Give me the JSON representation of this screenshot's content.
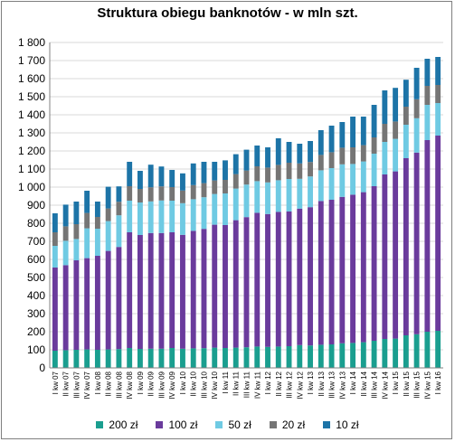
{
  "chart_data": {
    "type": "bar",
    "stacked": true,
    "title": "Struktura obiegu banknotów - w mln szt.",
    "xlabel": "",
    "ylabel": "",
    "ylim": [
      0,
      1800
    ],
    "yticks": [
      0,
      100,
      200,
      300,
      400,
      500,
      600,
      700,
      800,
      900,
      1000,
      1100,
      1200,
      1300,
      1400,
      1500,
      1600,
      1700,
      1800
    ],
    "ytick_labels": [
      "0",
      "100",
      "200",
      "300",
      "400",
      "500",
      "600",
      "700",
      "800",
      "900",
      "1 000",
      "1 100",
      "1 200",
      "1 300",
      "1 400",
      "1 500",
      "1 600",
      "1 700",
      "1 800"
    ],
    "grid": true,
    "legend_position": "bottom",
    "categories": [
      "I kw 07",
      "II kw 07",
      "III kw 07",
      "IV kw 07",
      "I kw 08",
      "II kw 08",
      "III kw 08",
      "IV kw 08",
      "I kw 09",
      "II kw 09",
      "III kw 09",
      "IV kw 09",
      "I kw 10",
      "II kw 10",
      "III kw 10",
      "IV kw 10",
      "I kw 11",
      "II kw 11",
      "III kw 11",
      "IV kw 11",
      "I kw 12",
      "II kw 12",
      "III kw 12",
      "IV kw 12",
      "I kw 13",
      "II kw 13",
      "III kw 13",
      "IV kw 13",
      "I kw 14",
      "II kw 14",
      "III kw 14",
      "IV kw 14",
      "I kw 15",
      "II kw 15",
      "III kw 15",
      "IV kw 15",
      "I kw 16"
    ],
    "series": [
      {
        "name": "200 zł",
        "color": "#1a9e8f",
        "values": [
          95,
          98,
          100,
          102,
          100,
          102,
          104,
          110,
          105,
          106,
          106,
          110,
          106,
          108,
          109,
          112,
          110,
          112,
          114,
          118,
          116,
          118,
          120,
          126,
          124,
          128,
          130,
          136,
          138,
          142,
          150,
          160,
          162,
          180,
          186,
          200,
          205
        ]
      },
      {
        "name": "100 zł",
        "color": "#6a3b9c",
        "values": [
          460,
          470,
          495,
          505,
          520,
          545,
          565,
          640,
          630,
          640,
          640,
          640,
          630,
          650,
          660,
          680,
          680,
          705,
          720,
          740,
          735,
          745,
          745,
          755,
          765,
          795,
          800,
          810,
          820,
          830,
          855,
          910,
          925,
          980,
          1005,
          1060,
          1080
        ]
      },
      {
        "name": "50 zł",
        "color": "#6fcae3",
        "values": [
          120,
          135,
          118,
          165,
          150,
          165,
          175,
          175,
          180,
          175,
          180,
          175,
          175,
          175,
          175,
          170,
          175,
          175,
          180,
          175,
          175,
          175,
          180,
          165,
          170,
          170,
          175,
          180,
          170,
          170,
          180,
          180,
          180,
          185,
          190,
          195,
          180
        ]
      },
      {
        "name": "20 zł",
        "color": "#757575",
        "values": [
          75,
          80,
          82,
          85,
          65,
          70,
          75,
          80,
          75,
          78,
          78,
          75,
          70,
          78,
          78,
          75,
          75,
          80,
          78,
          82,
          82,
          85,
          90,
          85,
          80,
          85,
          88,
          92,
          92,
          90,
          90,
          100,
          96,
          100,
          105,
          105,
          100
        ]
      },
      {
        "name": "10 zł",
        "color": "#1d74a7",
        "values": [
          105,
          120,
          125,
          123,
          85,
          120,
          85,
          135,
          100,
          125,
          110,
          95,
          95,
          120,
          118,
          103,
          108,
          110,
          115,
          115,
          112,
          147,
          115,
          109,
          116,
          137,
          147,
          142,
          170,
          158,
          180,
          185,
          186,
          149,
          174,
          150,
          155
        ]
      }
    ]
  }
}
